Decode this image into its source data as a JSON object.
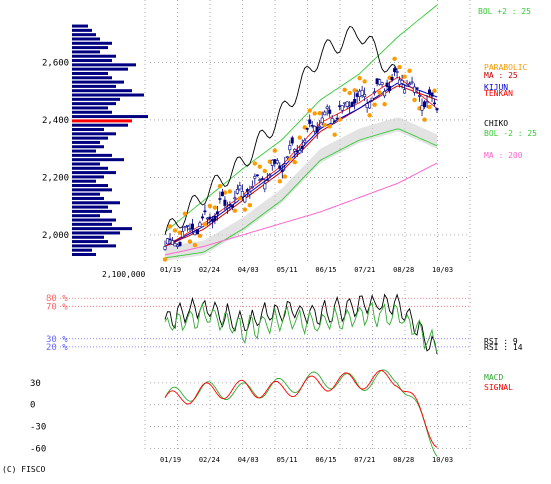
{
  "copyright": "(C) FISCO",
  "dates": [
    "01/19",
    "02/24",
    "04/03",
    "05/11",
    "06/15",
    "07/21",
    "08/28",
    "10/03"
  ],
  "colors": {
    "candle_up": "#ffffff",
    "candle_down": "#000080",
    "volume": "#000080",
    "volume_highlight": "#ff0000",
    "bol_outer": "#33cc33",
    "bol_mid": "#009900",
    "ma25": "#cc0000",
    "ma200": "#ff66cc",
    "parabolic": "#ff9900",
    "tenkan": "#ff0000",
    "kijun": "#0000cc",
    "chikou": "#000000",
    "cloud": "#cccccc",
    "rsi9": "#000000",
    "rsi14": "#33aa33",
    "macd": "#33aa33",
    "signal": "#ff0000",
    "grid": "#999999",
    "rsi_high": "#ff6666",
    "rsi_low": "#6666ff"
  },
  "price_panel": {
    "yticks": [
      2000,
      2200,
      2400,
      2600
    ],
    "ytick_labels": [
      "2,000",
      "2,200",
      "2,400",
      "2,600"
    ],
    "volume_scale_label": "2,100,000",
    "legend": {
      "bol_upper": "BOL +2 : 25",
      "parabolic": "PARABOLIC",
      "ma25": "MA : 25",
      "kijun": "KIJUN",
      "tenkan": "TENKAN",
      "chiko": "CHIKO",
      "bol_lower": "BOL -2 : 25",
      "ma200": "MA : 200"
    }
  },
  "rsi_panel": {
    "yticks": [
      80,
      70,
      30,
      20
    ],
    "ytick_labels": [
      "80 %",
      "70 %",
      "30 %",
      "20 %"
    ],
    "legend": {
      "rsi9": "RSI : 9",
      "rsi14": "RSI : 14"
    }
  },
  "macd_panel": {
    "yticks": [
      30,
      0,
      -30,
      -60
    ],
    "ytick_labels": [
      "30",
      "0",
      "-30",
      "-60"
    ],
    "legend": {
      "macd": "MACD",
      "signal": "SIGNAL"
    }
  },
  "chart_data": [
    {
      "type": "candlestick",
      "title": "",
      "x": [
        "01/19",
        "02/24",
        "04/03",
        "05/11",
        "06/15",
        "07/21",
        "08/28",
        "10/03"
      ],
      "ylim": [
        1930,
        2800
      ],
      "close": [
        1960,
        2050,
        2150,
        2250,
        2400,
        2470,
        2550,
        2440
      ],
      "series": [
        {
          "name": "BOL +2 : 25",
          "values": [
            2010,
            2120,
            2230,
            2330,
            2470,
            2560,
            2690,
            2800
          ]
        },
        {
          "name": "MA : 25",
          "values": [
            1960,
            2020,
            2120,
            2220,
            2360,
            2440,
            2520,
            2470
          ]
        },
        {
          "name": "BOL -2 : 25",
          "values": [
            1920,
            1940,
            2020,
            2120,
            2260,
            2330,
            2370,
            2310
          ]
        },
        {
          "name": "MA : 200",
          "values": [
            1930,
            1960,
            2000,
            2040,
            2080,
            2130,
            2180,
            2250
          ]
        },
        {
          "name": "KIJUN",
          "values": [
            1960,
            2030,
            2130,
            2230,
            2370,
            2440,
            2530,
            2480
          ]
        },
        {
          "name": "TENKAN",
          "values": [
            1960,
            2040,
            2140,
            2240,
            2390,
            2460,
            2550,
            2440
          ]
        },
        {
          "name": "CHIKO",
          "values": [
            2000,
            2140,
            2250,
            2420,
            2630,
            2710,
            2540,
            null
          ]
        }
      ],
      "volume_profile": {
        "price_levels": [
          1930,
          1945,
          1960,
          1975,
          1990,
          2005,
          2020,
          2035,
          2050,
          2065,
          2080,
          2095,
          2110,
          2125,
          2140,
          2155,
          2170,
          2185,
          2200,
          2215,
          2230,
          2245,
          2260,
          2275,
          2290,
          2305,
          2320,
          2335,
          2350,
          2365,
          2380,
          2395,
          2410,
          2425,
          2440,
          2455,
          2470,
          2485,
          2500,
          2515,
          2530,
          2545,
          2560,
          2575,
          2590,
          2605,
          2620,
          2635,
          2650,
          2665,
          2680,
          2695,
          2710,
          2725
        ],
        "relative_volume": [
          0.3,
          0.25,
          0.55,
          0.45,
          0.4,
          0.6,
          0.75,
          0.5,
          0.55,
          0.35,
          0.5,
          0.45,
          0.6,
          0.4,
          0.35,
          0.5,
          0.45,
          0.3,
          0.4,
          0.55,
          0.45,
          0.35,
          0.65,
          0.5,
          0.3,
          0.4,
          0.35,
          0.45,
          0.55,
          0.4,
          0.7,
          0.75,
          0.95,
          0.5,
          0.45,
          0.55,
          0.6,
          0.9,
          0.75,
          0.55,
          0.65,
          0.5,
          0.45,
          0.7,
          0.8,
          0.5,
          0.55,
          0.35,
          0.45,
          0.5,
          0.35,
          0.3,
          0.25,
          0.2
        ],
        "highlight_level": 2395
      }
    },
    {
      "type": "line",
      "title": "",
      "x": [
        "01/19",
        "02/24",
        "04/03",
        "05/11",
        "06/15",
        "07/21",
        "08/28",
        "10/03"
      ],
      "ylim": [
        10,
        100
      ],
      "series": [
        {
          "name": "RSI : 9",
          "values": [
            55,
            70,
            50,
            65,
            60,
            70,
            75,
            15
          ]
        },
        {
          "name": "RSI : 14",
          "values": [
            45,
            60,
            40,
            55,
            50,
            60,
            60,
            20
          ]
        }
      ]
    },
    {
      "type": "line",
      "title": "",
      "x": [
        "01/19",
        "02/24",
        "04/03",
        "05/11",
        "06/15",
        "07/21",
        "08/28",
        "10/03"
      ],
      "ylim": [
        -65,
        45
      ],
      "series": [
        {
          "name": "MACD",
          "values": [
            10,
            20,
            18,
            25,
            35,
            30,
            40,
            -60
          ]
        },
        {
          "name": "SIGNAL",
          "values": [
            5,
            18,
            22,
            20,
            30,
            33,
            37,
            -50
          ]
        }
      ]
    }
  ]
}
